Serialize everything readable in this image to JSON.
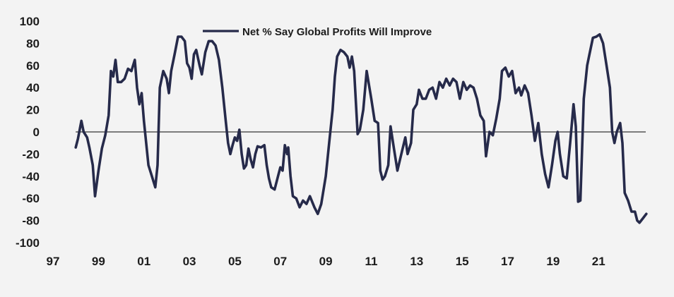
{
  "colors": {
    "background": "#f3f3f3",
    "series": "#262a4a",
    "zero_line": "#555555",
    "text": "#1c1c1c"
  },
  "chart_data": {
    "type": "line",
    "title": "",
    "xlabel": "",
    "ylabel": "",
    "xlim": [
      1997,
      2023.2
    ],
    "ylim": [
      -100,
      100
    ],
    "x_ticks": [
      "97",
      "99",
      "01",
      "03",
      "05",
      "07",
      "09",
      "11",
      "13",
      "15",
      "17",
      "19",
      "21"
    ],
    "y_ticks": [
      "100",
      "80",
      "60",
      "40",
      "20",
      "0",
      "-20",
      "-40",
      "-60",
      "-80",
      "-100"
    ],
    "legend_position": "top-center",
    "grid": false,
    "series": [
      {
        "name": "Net % Say Global Profits Will Improve",
        "points": [
          [
            1998.0,
            -14
          ],
          [
            1998.1,
            -6
          ],
          [
            1998.25,
            10
          ],
          [
            1998.35,
            0
          ],
          [
            1998.5,
            -5
          ],
          [
            1998.6,
            -14
          ],
          [
            1998.75,
            -30
          ],
          [
            1998.85,
            -58
          ],
          [
            1999.0,
            -35
          ],
          [
            1999.15,
            -15
          ],
          [
            1999.3,
            -3
          ],
          [
            1999.45,
            15
          ],
          [
            1999.55,
            55
          ],
          [
            1999.65,
            50
          ],
          [
            1999.75,
            65
          ],
          [
            1999.85,
            45
          ],
          [
            2000.0,
            45
          ],
          [
            2000.15,
            48
          ],
          [
            2000.3,
            57
          ],
          [
            2000.45,
            55
          ],
          [
            2000.6,
            65
          ],
          [
            2000.7,
            40
          ],
          [
            2000.8,
            25
          ],
          [
            2000.9,
            35
          ],
          [
            2001.0,
            10
          ],
          [
            2001.1,
            -10
          ],
          [
            2001.2,
            -30
          ],
          [
            2001.35,
            -40
          ],
          [
            2001.5,
            -50
          ],
          [
            2001.6,
            -30
          ],
          [
            2001.7,
            40
          ],
          [
            2001.85,
            55
          ],
          [
            2002.0,
            48
          ],
          [
            2002.1,
            35
          ],
          [
            2002.2,
            55
          ],
          [
            2002.35,
            70
          ],
          [
            2002.5,
            86
          ],
          [
            2002.65,
            86
          ],
          [
            2002.8,
            82
          ],
          [
            2002.9,
            62
          ],
          [
            2003.0,
            58
          ],
          [
            2003.1,
            48
          ],
          [
            2003.2,
            70
          ],
          [
            2003.3,
            74
          ],
          [
            2003.45,
            60
          ],
          [
            2003.55,
            52
          ],
          [
            2003.7,
            72
          ],
          [
            2003.85,
            82
          ],
          [
            2004.0,
            82
          ],
          [
            2004.15,
            78
          ],
          [
            2004.3,
            65
          ],
          [
            2004.45,
            40
          ],
          [
            2004.6,
            10
          ],
          [
            2004.7,
            -10
          ],
          [
            2004.8,
            -20
          ],
          [
            2004.9,
            -12
          ],
          [
            2005.0,
            -5
          ],
          [
            2005.1,
            -8
          ],
          [
            2005.2,
            2
          ],
          [
            2005.3,
            -20
          ],
          [
            2005.4,
            -33
          ],
          [
            2005.5,
            -30
          ],
          [
            2005.6,
            -15
          ],
          [
            2005.7,
            -25
          ],
          [
            2005.8,
            -32
          ],
          [
            2005.9,
            -20
          ],
          [
            2006.0,
            -13
          ],
          [
            2006.15,
            -14
          ],
          [
            2006.3,
            -12
          ],
          [
            2006.4,
            -30
          ],
          [
            2006.5,
            -42
          ],
          [
            2006.6,
            -50
          ],
          [
            2006.75,
            -52
          ],
          [
            2006.9,
            -40
          ],
          [
            2007.0,
            -32
          ],
          [
            2007.1,
            -35
          ],
          [
            2007.2,
            -12
          ],
          [
            2007.3,
            -20
          ],
          [
            2007.35,
            -14
          ],
          [
            2007.45,
            -40
          ],
          [
            2007.55,
            -58
          ],
          [
            2007.7,
            -60
          ],
          [
            2007.85,
            -68
          ],
          [
            2008.0,
            -62
          ],
          [
            2008.15,
            -65
          ],
          [
            2008.3,
            -58
          ],
          [
            2008.5,
            -68
          ],
          [
            2008.65,
            -74
          ],
          [
            2008.8,
            -65
          ],
          [
            2009.0,
            -40
          ],
          [
            2009.15,
            -10
          ],
          [
            2009.3,
            20
          ],
          [
            2009.4,
            50
          ],
          [
            2009.5,
            68
          ],
          [
            2009.65,
            74
          ],
          [
            2009.8,
            72
          ],
          [
            2009.95,
            68
          ],
          [
            2010.05,
            58
          ],
          [
            2010.15,
            68
          ],
          [
            2010.25,
            55
          ],
          [
            2010.4,
            -2
          ],
          [
            2010.5,
            2
          ],
          [
            2010.65,
            20
          ],
          [
            2010.8,
            55
          ],
          [
            2011.0,
            30
          ],
          [
            2011.15,
            10
          ],
          [
            2011.3,
            8
          ],
          [
            2011.4,
            -35
          ],
          [
            2011.5,
            -43
          ],
          [
            2011.6,
            -40
          ],
          [
            2011.75,
            -30
          ],
          [
            2011.85,
            5
          ],
          [
            2012.0,
            -15
          ],
          [
            2012.15,
            -35
          ],
          [
            2012.3,
            -22
          ],
          [
            2012.5,
            -5
          ],
          [
            2012.6,
            -20
          ],
          [
            2012.75,
            -10
          ],
          [
            2012.85,
            20
          ],
          [
            2013.0,
            25
          ],
          [
            2013.1,
            38
          ],
          [
            2013.25,
            30
          ],
          [
            2013.4,
            30
          ],
          [
            2013.55,
            38
          ],
          [
            2013.7,
            40
          ],
          [
            2013.85,
            30
          ],
          [
            2014.0,
            45
          ],
          [
            2014.15,
            40
          ],
          [
            2014.3,
            48
          ],
          [
            2014.45,
            42
          ],
          [
            2014.6,
            48
          ],
          [
            2014.75,
            45
          ],
          [
            2014.9,
            30
          ],
          [
            2015.05,
            45
          ],
          [
            2015.2,
            38
          ],
          [
            2015.35,
            42
          ],
          [
            2015.5,
            40
          ],
          [
            2015.65,
            30
          ],
          [
            2015.8,
            15
          ],
          [
            2015.95,
            10
          ],
          [
            2016.05,
            -22
          ],
          [
            2016.2,
            0
          ],
          [
            2016.35,
            -3
          ],
          [
            2016.5,
            12
          ],
          [
            2016.65,
            30
          ],
          [
            2016.75,
            55
          ],
          [
            2016.9,
            58
          ],
          [
            2017.05,
            50
          ],
          [
            2017.2,
            55
          ],
          [
            2017.35,
            35
          ],
          [
            2017.5,
            40
          ],
          [
            2017.6,
            33
          ],
          [
            2017.75,
            42
          ],
          [
            2017.9,
            35
          ],
          [
            2018.05,
            15
          ],
          [
            2018.2,
            -8
          ],
          [
            2018.35,
            8
          ],
          [
            2018.5,
            -20
          ],
          [
            2018.65,
            -38
          ],
          [
            2018.8,
            -50
          ],
          [
            2018.95,
            -30
          ],
          [
            2019.1,
            -8
          ],
          [
            2019.2,
            0
          ],
          [
            2019.3,
            -20
          ],
          [
            2019.45,
            -40
          ],
          [
            2019.6,
            -42
          ],
          [
            2019.75,
            -10
          ],
          [
            2019.9,
            25
          ],
          [
            2020.0,
            5
          ],
          [
            2020.1,
            -63
          ],
          [
            2020.2,
            -62
          ],
          [
            2020.35,
            30
          ],
          [
            2020.5,
            60
          ],
          [
            2020.6,
            70
          ],
          [
            2020.75,
            85
          ],
          [
            2020.9,
            86
          ],
          [
            2021.05,
            88
          ],
          [
            2021.2,
            80
          ],
          [
            2021.35,
            60
          ],
          [
            2021.5,
            40
          ],
          [
            2021.6,
            0
          ],
          [
            2021.7,
            -10
          ],
          [
            2021.8,
            0
          ],
          [
            2021.95,
            8
          ],
          [
            2022.05,
            -10
          ],
          [
            2022.15,
            -55
          ],
          [
            2022.3,
            -62
          ],
          [
            2022.45,
            -72
          ],
          [
            2022.6,
            -72
          ],
          [
            2022.7,
            -80
          ],
          [
            2022.8,
            -82
          ],
          [
            2022.95,
            -78
          ],
          [
            2023.1,
            -74
          ]
        ]
      }
    ]
  }
}
